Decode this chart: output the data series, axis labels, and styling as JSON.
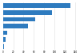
{
  "values": [
    130000,
    95000,
    62000,
    48000,
    9000,
    6000,
    2500
  ],
  "bar_color": "#2e7bbf",
  "background_color": "#ffffff",
  "xlim": [
    0,
    145000
  ],
  "bar_height": 0.65,
  "figsize": [
    1.0,
    0.71
  ],
  "dpi": 100,
  "xticks": [
    0,
    20000,
    40000,
    60000,
    80000,
    100000,
    120000,
    140000
  ],
  "xtick_labels": [
    "0",
    "20",
    "40",
    "60",
    "80",
    "100",
    "120",
    "140"
  ],
  "grid_color": "#dddddd",
  "tick_fontsize": 2.0
}
